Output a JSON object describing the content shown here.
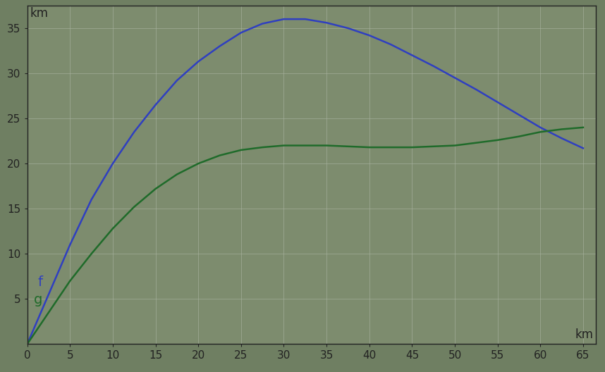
{
  "chart_data": {
    "type": "line",
    "x_label": "km",
    "y_label": "km",
    "x": [
      0,
      2.5,
      5,
      7.5,
      10,
      12.5,
      15,
      17.5,
      20,
      22.5,
      25,
      27.5,
      30,
      32.5,
      35,
      37.5,
      40,
      42.5,
      45,
      47.5,
      50,
      52.5,
      55,
      57.5,
      60,
      62.5,
      65
    ],
    "series": [
      {
        "name": "f",
        "color": "#2f3fc0",
        "values": [
          0,
          5.5,
          11,
          16,
          20,
          23.5,
          26.5,
          29.2,
          31.3,
          33,
          34.5,
          35.5,
          36,
          36,
          35.6,
          35,
          34.2,
          33.2,
          32,
          30.8,
          29.5,
          28.2,
          26.8,
          25.4,
          24,
          22.8,
          21.7
        ]
      },
      {
        "name": "g",
        "color": "#1f6b2a",
        "values": [
          0,
          3.5,
          7,
          10,
          12.8,
          15.2,
          17.2,
          18.8,
          20,
          20.9,
          21.5,
          21.8,
          22,
          22,
          22,
          21.9,
          21.8,
          21.8,
          21.8,
          21.9,
          22,
          22.3,
          22.6,
          23,
          23.5,
          23.8,
          24
        ]
      }
    ],
    "xlim": [
      0,
      66.5
    ],
    "ylim": [
      0,
      37.5
    ],
    "xticks": [
      0,
      5,
      10,
      15,
      20,
      25,
      30,
      35,
      40,
      45,
      50,
      55,
      60,
      65
    ],
    "yticks": [
      5,
      10,
      15,
      20,
      25,
      30,
      35
    ],
    "grid": true
  }
}
